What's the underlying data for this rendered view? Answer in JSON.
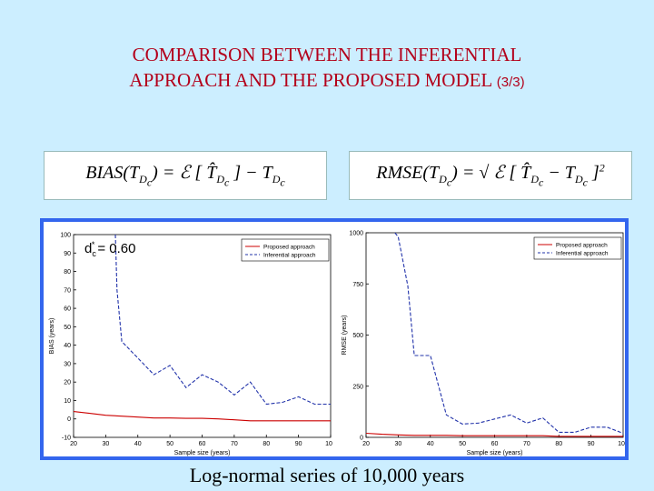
{
  "slide": {
    "title_line1": "COMPARISON BETWEEN THE INFERENTIAL",
    "title_line2": "APPROACH AND THE PROPOSED MODEL",
    "title_suffix": "(3/3)",
    "caption": "Log-normal series of 10,000 years"
  },
  "formulas": {
    "bias": "BIAS(T_Dc) = E[ T̂_Dc ] − T_Dc",
    "rmse": "RMSE(T_Dc) = sqrt( E[ T̂_Dc − T_Dc ]² )"
  },
  "colors": {
    "background": "#cceeff",
    "title": "#b3001b",
    "frame": "#3366ee",
    "proposed": "#cc0000",
    "inferential": "#2233aa"
  },
  "chart_data": [
    {
      "type": "line",
      "title": "",
      "annotation": "d*c = 0.60",
      "xlabel": "Sample size (years)",
      "ylabel": "BIAS (years)",
      "xlim": [
        20,
        100
      ],
      "ylim": [
        -10,
        100
      ],
      "xticks": [
        20,
        30,
        40,
        50,
        60,
        70,
        80,
        90,
        100
      ],
      "yticks": [
        -10,
        0,
        10,
        20,
        30,
        40,
        50,
        60,
        70,
        80,
        90,
        100
      ],
      "legend": "top-right",
      "series": [
        {
          "name": "Proposed approach",
          "style": "solid",
          "x": [
            20,
            25,
            30,
            35,
            40,
            45,
            50,
            55,
            60,
            65,
            70,
            75,
            80,
            85,
            90,
            95,
            100
          ],
          "y": [
            4,
            3,
            2,
            1.5,
            1,
            0.5,
            0.5,
            0.3,
            0.3,
            0,
            -0.5,
            -1,
            -1,
            -1,
            -1,
            -1,
            -1
          ]
        },
        {
          "name": "Inferential approach",
          "style": "dashed",
          "x": [
            33,
            33.5,
            35,
            40,
            45,
            50,
            55,
            60,
            65,
            70,
            75,
            80,
            85,
            90,
            95,
            100
          ],
          "y": [
            100,
            70,
            42,
            33,
            24,
            29,
            17,
            24,
            20,
            13,
            20,
            8,
            9,
            12,
            8,
            8
          ]
        }
      ]
    },
    {
      "type": "line",
      "title": "",
      "xlabel": "Sample size (years)",
      "ylabel": "RMSE (years)",
      "xlim": [
        20,
        100
      ],
      "ylim": [
        0,
        1000
      ],
      "xticks": [
        20,
        30,
        40,
        50,
        60,
        70,
        80,
        90,
        100
      ],
      "yticks": [
        0,
        250,
        500,
        750,
        1000
      ],
      "legend": "top-right",
      "series": [
        {
          "name": "Proposed approach",
          "style": "solid",
          "x": [
            20,
            25,
            30,
            35,
            40,
            45,
            50,
            55,
            60,
            65,
            70,
            75,
            80,
            85,
            90,
            95,
            100
          ],
          "y": [
            20,
            15,
            12,
            10,
            10,
            10,
            8,
            8,
            8,
            8,
            8,
            8,
            5,
            5,
            5,
            5,
            5
          ]
        },
        {
          "name": "Inferential approach",
          "style": "dashed",
          "x": [
            29,
            30,
            33,
            35,
            38,
            40,
            45,
            50,
            55,
            60,
            65,
            70,
            75,
            80,
            85,
            90,
            95,
            100
          ],
          "y": [
            1000,
            980,
            740,
            400,
            400,
            400,
            110,
            65,
            70,
            90,
            110,
            70,
            95,
            25,
            25,
            50,
            50,
            20
          ]
        }
      ]
    }
  ]
}
